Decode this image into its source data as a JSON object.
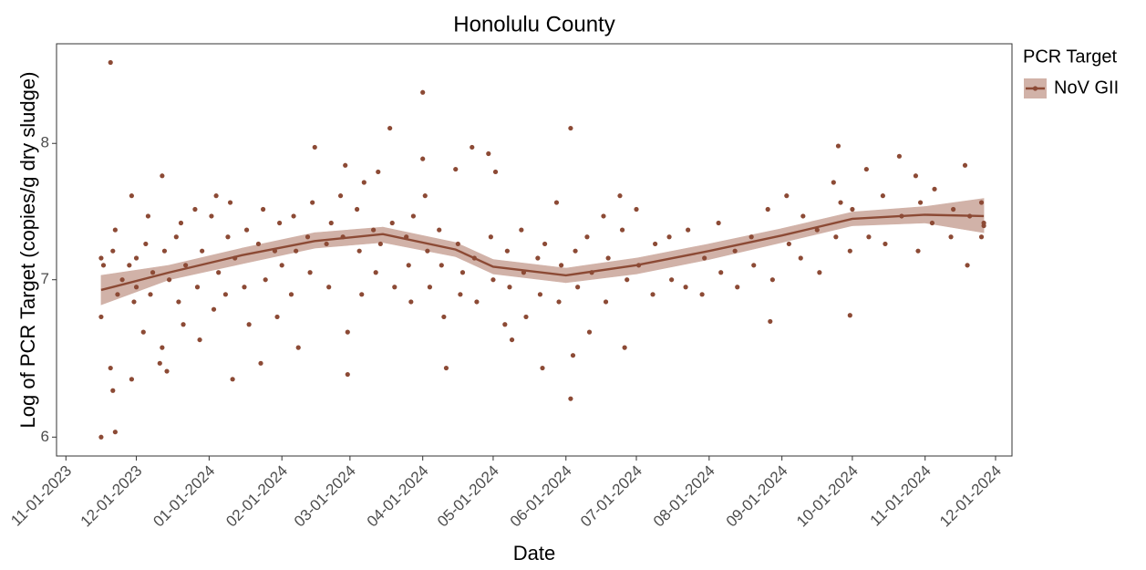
{
  "chart_data": {
    "type": "scatter",
    "title": "Honolulu County",
    "x_label": "Date",
    "y_label": "Log of PCR Target (copies/g dry sludge)",
    "legend_title": "PCR Target",
    "legend": "top-right",
    "ylog": true,
    "xlim": [
      "2023-10-28",
      "2024-12-08"
    ],
    "xticks": [
      {
        "value": "2023-11-01",
        "label": "11-01-2023"
      },
      {
        "value": "2023-12-01",
        "label": "12-01-2023"
      },
      {
        "value": "2024-01-01",
        "label": "01-01-2024"
      },
      {
        "value": "2024-02-01",
        "label": "02-01-2024"
      },
      {
        "value": "2024-03-01",
        "label": "03-01-2024"
      },
      {
        "value": "2024-04-01",
        "label": "04-01-2024"
      },
      {
        "value": "2024-05-01",
        "label": "05-01-2024"
      },
      {
        "value": "2024-06-01",
        "label": "06-01-2024"
      },
      {
        "value": "2024-07-01",
        "label": "07-01-2024"
      },
      {
        "value": "2024-08-01",
        "label": "08-01-2024"
      },
      {
        "value": "2024-09-01",
        "label": "09-01-2024"
      },
      {
        "value": "2024-10-01",
        "label": "10-01-2024"
      },
      {
        "value": "2024-11-01",
        "label": "11-01-2024"
      },
      {
        "value": "2024-12-01",
        "label": "12-01-2024"
      }
    ],
    "ylim": [
      5.89,
      8.82
    ],
    "yticks": [
      6,
      7,
      8
    ],
    "series": [
      {
        "name": "NoV GII",
        "color": "#8c4a35",
        "x": [
          "2023-11-16",
          "2023-11-16",
          "2023-11-16",
          "2023-11-17",
          "2023-11-20",
          "2023-11-20",
          "2023-11-21",
          "2023-11-21",
          "2023-11-22",
          "2023-11-22",
          "2023-11-23",
          "2023-11-25",
          "2023-11-28",
          "2023-11-29",
          "2023-11-29",
          "2023-11-30",
          "2023-12-01",
          "2023-12-01",
          "2023-12-04",
          "2023-12-05",
          "2023-12-06",
          "2023-12-07",
          "2023-12-08",
          "2023-12-11",
          "2023-12-12",
          "2023-12-12",
          "2023-12-13",
          "2023-12-14",
          "2023-12-15",
          "2023-12-18",
          "2023-12-19",
          "2023-12-20",
          "2023-12-21",
          "2023-12-22",
          "2023-12-26",
          "2023-12-27",
          "2023-12-28",
          "2023-12-29",
          "2024-01-02",
          "2024-01-03",
          "2024-01-04",
          "2024-01-05",
          "2024-01-08",
          "2024-01-09",
          "2024-01-10",
          "2024-01-11",
          "2024-01-12",
          "2024-01-16",
          "2024-01-17",
          "2024-01-18",
          "2024-01-22",
          "2024-01-23",
          "2024-01-24",
          "2024-01-25",
          "2024-01-29",
          "2024-01-30",
          "2024-01-31",
          "2024-02-01",
          "2024-02-05",
          "2024-02-06",
          "2024-02-07",
          "2024-02-08",
          "2024-02-12",
          "2024-02-13",
          "2024-02-14",
          "2024-02-15",
          "2024-02-20",
          "2024-02-21",
          "2024-02-22",
          "2024-02-26",
          "2024-02-27",
          "2024-02-28",
          "2024-02-29",
          "2024-02-29",
          "2024-03-04",
          "2024-03-05",
          "2024-03-06",
          "2024-03-07",
          "2024-03-11",
          "2024-03-12",
          "2024-03-13",
          "2024-03-14",
          "2024-03-18",
          "2024-03-19",
          "2024-03-20",
          "2024-03-25",
          "2024-03-26",
          "2024-03-27",
          "2024-03-28",
          "2024-04-01",
          "2024-04-01",
          "2024-04-02",
          "2024-04-03",
          "2024-04-04",
          "2024-04-08",
          "2024-04-09",
          "2024-04-10",
          "2024-04-11",
          "2024-04-15",
          "2024-04-16",
          "2024-04-17",
          "2024-04-18",
          "2024-04-22",
          "2024-04-23",
          "2024-04-24",
          "2024-04-29",
          "2024-04-30",
          "2024-05-01",
          "2024-05-02",
          "2024-05-06",
          "2024-05-07",
          "2024-05-08",
          "2024-05-09",
          "2024-05-13",
          "2024-05-14",
          "2024-05-15",
          "2024-05-20",
          "2024-05-21",
          "2024-05-22",
          "2024-05-23",
          "2024-05-28",
          "2024-05-29",
          "2024-05-30",
          "2024-06-03",
          "2024-06-03",
          "2024-06-04",
          "2024-06-05",
          "2024-06-06",
          "2024-06-10",
          "2024-06-11",
          "2024-06-12",
          "2024-06-17",
          "2024-06-18",
          "2024-06-19",
          "2024-06-24",
          "2024-06-25",
          "2024-06-26",
          "2024-06-27",
          "2024-07-01",
          "2024-07-02",
          "2024-07-08",
          "2024-07-09",
          "2024-07-15",
          "2024-07-16",
          "2024-07-22",
          "2024-07-23",
          "2024-07-29",
          "2024-07-30",
          "2024-08-05",
          "2024-08-06",
          "2024-08-12",
          "2024-08-13",
          "2024-08-19",
          "2024-08-20",
          "2024-08-26",
          "2024-08-27",
          "2024-08-28",
          "2024-09-03",
          "2024-09-04",
          "2024-09-09",
          "2024-09-10",
          "2024-09-16",
          "2024-09-17",
          "2024-09-23",
          "2024-09-24",
          "2024-09-25",
          "2024-09-26",
          "2024-09-30",
          "2024-09-30",
          "2024-10-01",
          "2024-10-07",
          "2024-10-08",
          "2024-10-14",
          "2024-10-15",
          "2024-10-21",
          "2024-10-22",
          "2024-10-28",
          "2024-10-29",
          "2024-10-30",
          "2024-11-04",
          "2024-11-05",
          "2024-11-12",
          "2024-11-13",
          "2024-11-18",
          "2024-11-19",
          "2024-11-20",
          "2024-11-25",
          "2024-11-25",
          "2024-11-26",
          "2024-11-26"
        ],
        "values": [
          6.0,
          7.15,
          6.75,
          7.1,
          8.66,
          6.42,
          6.28,
          7.2,
          6.03,
          7.35,
          6.9,
          7.0,
          7.1,
          6.35,
          7.6,
          6.85,
          7.15,
          6.95,
          6.65,
          7.25,
          7.45,
          6.9,
          7.05,
          6.45,
          7.75,
          6.55,
          7.2,
          6.4,
          7.0,
          7.3,
          6.85,
          7.4,
          6.7,
          7.1,
          7.5,
          6.95,
          6.6,
          7.2,
          7.45,
          6.8,
          7.6,
          7.05,
          6.9,
          7.3,
          7.55,
          6.35,
          7.15,
          6.95,
          7.35,
          6.7,
          7.25,
          6.45,
          7.5,
          7.0,
          7.2,
          6.75,
          7.4,
          7.1,
          6.9,
          7.45,
          7.2,
          6.55,
          7.3,
          7.05,
          7.55,
          7.97,
          7.25,
          6.95,
          7.4,
          7.6,
          7.3,
          7.83,
          6.65,
          6.38,
          7.5,
          7.2,
          6.9,
          7.7,
          7.35,
          7.05,
          7.78,
          7.25,
          8.12,
          7.4,
          6.95,
          7.3,
          7.1,
          6.85,
          7.45,
          8.41,
          7.88,
          7.6,
          7.2,
          6.95,
          7.35,
          7.1,
          6.75,
          6.42,
          7.8,
          7.25,
          6.9,
          7.05,
          7.97,
          7.15,
          6.85,
          7.92,
          7.3,
          7.0,
          7.78,
          6.7,
          7.2,
          6.95,
          6.6,
          7.35,
          7.05,
          6.75,
          7.15,
          6.9,
          6.42,
          7.25,
          7.55,
          6.85,
          7.1,
          8.12,
          6.23,
          6.5,
          7.2,
          6.95,
          7.3,
          6.65,
          7.05,
          7.45,
          6.85,
          7.15,
          7.6,
          7.35,
          6.55,
          7.0,
          7.5,
          7.1,
          6.9,
          7.25,
          7.3,
          7.0,
          6.95,
          7.35,
          6.9,
          7.15,
          7.4,
          7.05,
          7.2,
          6.95,
          7.3,
          7.1,
          7.5,
          6.72,
          7.0,
          7.6,
          7.25,
          7.15,
          7.45,
          7.35,
          7.05,
          7.7,
          7.3,
          7.98,
          7.55,
          6.76,
          7.2,
          7.5,
          7.8,
          7.3,
          7.6,
          7.25,
          7.9,
          7.45,
          7.75,
          7.2,
          7.55,
          7.4,
          7.65,
          7.3,
          7.5,
          7.83,
          7.1,
          7.45,
          7.3,
          7.55,
          7.38,
          7.4
        ]
      }
    ],
    "smooth": {
      "x": [
        "2023-11-16",
        "2023-12-15",
        "2024-01-15",
        "2024-02-15",
        "2024-03-15",
        "2024-04-15",
        "2024-05-01",
        "2024-06-01",
        "2024-07-01",
        "2024-08-01",
        "2024-09-01",
        "2024-10-01",
        "2024-11-01",
        "2024-11-26"
      ],
      "values": [
        6.93,
        7.05,
        7.17,
        7.27,
        7.32,
        7.21,
        7.09,
        7.03,
        7.1,
        7.2,
        7.31,
        7.43,
        7.46,
        7.45
      ],
      "upper": [
        7.03,
        7.1,
        7.22,
        7.33,
        7.37,
        7.26,
        7.14,
        7.08,
        7.15,
        7.25,
        7.36,
        7.48,
        7.52,
        7.58
      ],
      "lower": [
        6.83,
        7.0,
        7.11,
        7.22,
        7.26,
        7.16,
        7.04,
        6.98,
        7.04,
        7.14,
        7.26,
        7.38,
        7.4,
        7.33
      ]
    }
  }
}
